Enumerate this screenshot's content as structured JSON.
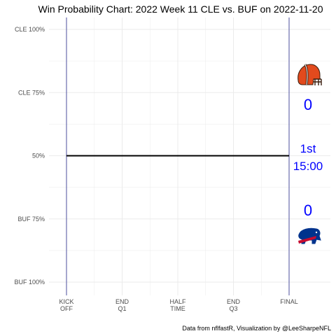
{
  "chart_data": {
    "type": "line",
    "title": "Win Probability Chart: 2022 Week 11 CLE vs. BUF on 2022-11-20",
    "x_tick_labels": [
      [
        "KICK",
        "OFF"
      ],
      [
        "END",
        "Q1"
      ],
      [
        "HALF",
        "TIME"
      ],
      [
        "END",
        "Q3"
      ],
      [
        "FINAL"
      ]
    ],
    "x_ticks": [
      0,
      15,
      30,
      45,
      60
    ],
    "xlim": [
      0,
      60
    ],
    "y_tick_labels": [
      "CLE 100%",
      "CLE 75%",
      "50%",
      "BUF 75%",
      "BUF 100%"
    ],
    "y_ticks": [
      1,
      0.75,
      0.5,
      0.25,
      0
    ],
    "ylim": [
      0,
      1
    ],
    "grid": true,
    "series": [
      {
        "x": [
          0,
          60
        ],
        "y": [
          0.5,
          0.5
        ],
        "color": "#000000"
      }
    ],
    "annotations": {
      "home_score": "0",
      "away_score": "0",
      "quarter": "1st",
      "clock": "15:00"
    },
    "home_logo": "cleveland-browns-helmet-icon",
    "away_logo": "buffalo-bills-logo-icon",
    "colors": {
      "score_text": "#0000ff",
      "vertical_lines": "#24278a",
      "wp_line": "#000000",
      "grid": "#ebebeb"
    },
    "caption": "Data from nflfastR, Visualization by @LeeSharpeNFL"
  }
}
